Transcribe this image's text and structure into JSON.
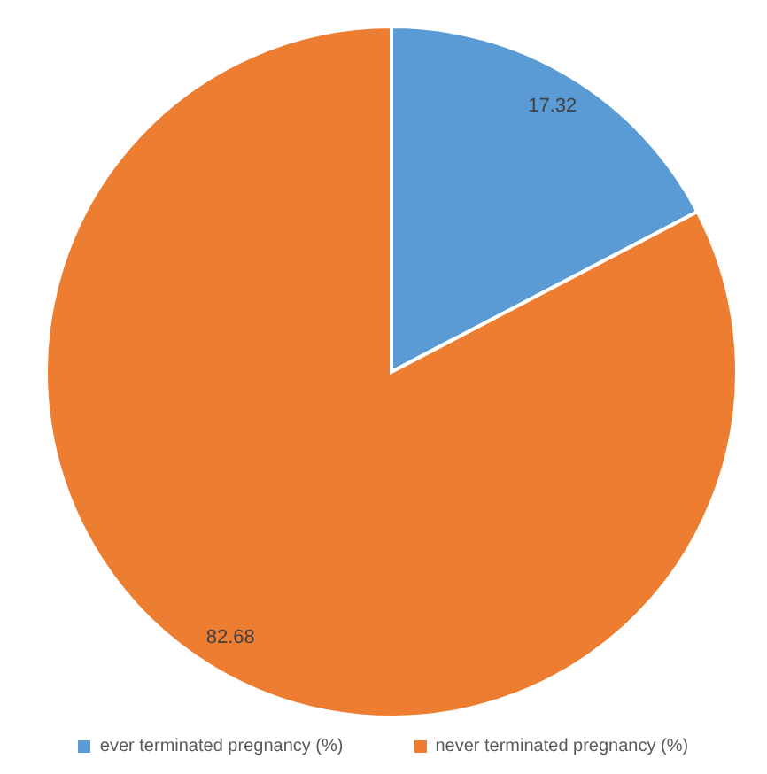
{
  "chart_data": {
    "type": "pie",
    "categories": [
      "ever terminated pregnancy (%)",
      "never terminated pregnancy (%)"
    ],
    "values": [
      17.32,
      82.68
    ],
    "colors": [
      "#5b9bd5",
      "#ed7d31"
    ],
    "data_labels": true,
    "legend": "bottom"
  }
}
